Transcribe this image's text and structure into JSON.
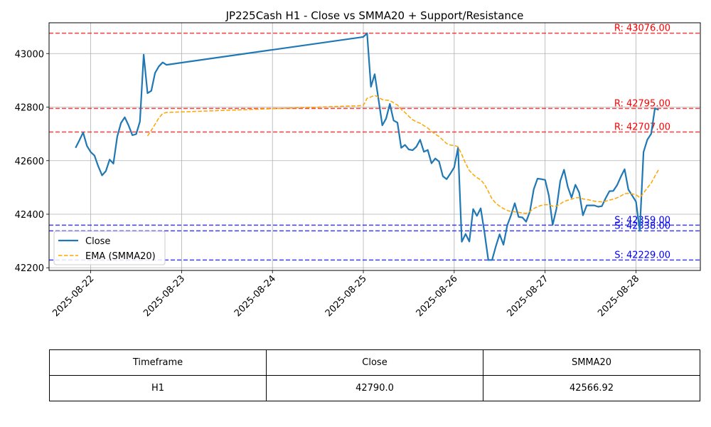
{
  "chart_data": {
    "type": "line",
    "title": "JP225Cash H1 - Close vs SMMA20 + Support/Resistance",
    "xlabel": "",
    "ylabel": "",
    "ylim": [
      42190,
      43115
    ],
    "yticks": [
      42200,
      42400,
      42600,
      42800,
      43000
    ],
    "xlim": [
      "2025-08-21 13:00",
      "2025-08-28 17:00"
    ],
    "xticks": [
      "2025-08-22",
      "2025-08-23",
      "2025-08-24",
      "2025-08-25",
      "2025-08-26",
      "2025-08-27",
      "2025-08-28"
    ],
    "grid": true,
    "legend": {
      "placement": "lower-left",
      "entries": [
        "Close",
        "EMA (SMMA20)"
      ]
    },
    "series": [
      {
        "name": "Close",
        "color": "#1f77b4",
        "style": "solid",
        "points": [
          [
            "2025-08-21 20:00",
            42648
          ],
          [
            "2025-08-21 21:00",
            42676
          ],
          [
            "2025-08-21 22:00",
            42705
          ],
          [
            "2025-08-21 23:00",
            42655
          ],
          [
            "2025-08-22 00:00",
            42632
          ],
          [
            "2025-08-22 01:00",
            42619
          ],
          [
            "2025-08-22 02:00",
            42579
          ],
          [
            "2025-08-22 03:00",
            42545
          ],
          [
            "2025-08-22 04:00",
            42561
          ],
          [
            "2025-08-22 05:00",
            42604
          ],
          [
            "2025-08-22 06:00",
            42589
          ],
          [
            "2025-08-22 07:00",
            42690
          ],
          [
            "2025-08-22 08:00",
            42741
          ],
          [
            "2025-08-22 09:00",
            42762
          ],
          [
            "2025-08-22 10:00",
            42732
          ],
          [
            "2025-08-22 11:00",
            42695
          ],
          [
            "2025-08-22 12:00",
            42699
          ],
          [
            "2025-08-22 13:00",
            42746
          ],
          [
            "2025-08-22 14:00",
            42996
          ],
          [
            "2025-08-22 15:00",
            42852
          ],
          [
            "2025-08-22 16:00",
            42861
          ],
          [
            "2025-08-22 17:00",
            42928
          ],
          [
            "2025-08-22 18:00",
            42952
          ],
          [
            "2025-08-22 19:00",
            42967
          ],
          [
            "2025-08-22 20:00",
            42958
          ],
          [
            "2025-08-25 00:00",
            43062
          ],
          [
            "2025-08-25 01:00",
            43076
          ],
          [
            "2025-08-25 02:00",
            42876
          ],
          [
            "2025-08-25 03:00",
            42923
          ],
          [
            "2025-08-25 04:00",
            42830
          ],
          [
            "2025-08-25 05:00",
            42732
          ],
          [
            "2025-08-25 06:00",
            42757
          ],
          [
            "2025-08-25 07:00",
            42812
          ],
          [
            "2025-08-25 08:00",
            42750
          ],
          [
            "2025-08-25 09:00",
            42742
          ],
          [
            "2025-08-25 10:00",
            42648
          ],
          [
            "2025-08-25 11:00",
            42659
          ],
          [
            "2025-08-25 12:00",
            42642
          ],
          [
            "2025-08-25 13:00",
            42639
          ],
          [
            "2025-08-25 14:00",
            42652
          ],
          [
            "2025-08-25 15:00",
            42678
          ],
          [
            "2025-08-25 16:00",
            42633
          ],
          [
            "2025-08-25 17:00",
            42640
          ],
          [
            "2025-08-25 18:00",
            42590
          ],
          [
            "2025-08-25 19:00",
            42608
          ],
          [
            "2025-08-25 20:00",
            42597
          ],
          [
            "2025-08-25 21:00",
            42542
          ],
          [
            "2025-08-25 22:00",
            42531
          ],
          [
            "2025-08-25 23:00",
            42552
          ],
          [
            "2025-08-26 00:00",
            42575
          ],
          [
            "2025-08-26 01:00",
            42648
          ],
          [
            "2025-08-26 02:00",
            42297
          ],
          [
            "2025-08-26 03:00",
            42326
          ],
          [
            "2025-08-26 04:00",
            42298
          ],
          [
            "2025-08-26 05:00",
            42419
          ],
          [
            "2025-08-26 06:00",
            42394
          ],
          [
            "2025-08-26 07:00",
            42422
          ],
          [
            "2025-08-26 08:00",
            42332
          ],
          [
            "2025-08-26 09:00",
            42229
          ],
          [
            "2025-08-26 10:00",
            42229
          ],
          [
            "2025-08-26 11:00",
            42280
          ],
          [
            "2025-08-26 12:00",
            42325
          ],
          [
            "2025-08-26 13:00",
            42286
          ],
          [
            "2025-08-26 14:00",
            42358
          ],
          [
            "2025-08-26 15:00",
            42396
          ],
          [
            "2025-08-26 16:00",
            42441
          ],
          [
            "2025-08-26 17:00",
            42390
          ],
          [
            "2025-08-26 18:00",
            42388
          ],
          [
            "2025-08-26 19:00",
            42372
          ],
          [
            "2025-08-26 20:00",
            42410
          ],
          [
            "2025-08-26 21:00",
            42493
          ],
          [
            "2025-08-26 22:00",
            42533
          ],
          [
            "2025-08-26 23:00",
            42531
          ],
          [
            "2025-08-27 00:00",
            42528
          ],
          [
            "2025-08-27 01:00",
            42469
          ],
          [
            "2025-08-27 02:00",
            42360
          ],
          [
            "2025-08-27 03:00",
            42420
          ],
          [
            "2025-08-27 04:00",
            42524
          ],
          [
            "2025-08-27 05:00",
            42566
          ],
          [
            "2025-08-27 06:00",
            42502
          ],
          [
            "2025-08-27 07:00",
            42462
          ],
          [
            "2025-08-27 08:00",
            42510
          ],
          [
            "2025-08-27 09:00",
            42481
          ],
          [
            "2025-08-27 10:00",
            42396
          ],
          [
            "2025-08-27 11:00",
            42433
          ],
          [
            "2025-08-27 12:00",
            42433
          ],
          [
            "2025-08-27 13:00",
            42433
          ],
          [
            "2025-08-27 14:00",
            42428
          ],
          [
            "2025-08-27 15:00",
            42430
          ],
          [
            "2025-08-27 16:00",
            42460
          ],
          [
            "2025-08-27 17:00",
            42486
          ],
          [
            "2025-08-27 18:00",
            42487
          ],
          [
            "2025-08-27 19:00",
            42508
          ],
          [
            "2025-08-27 20:00",
            42540
          ],
          [
            "2025-08-27 21:00",
            42568
          ],
          [
            "2025-08-27 22:00",
            42492
          ],
          [
            "2025-08-27 23:00",
            42470
          ],
          [
            "2025-08-28 00:00",
            42447
          ],
          [
            "2025-08-28 01:00",
            42338
          ],
          [
            "2025-08-28 02:00",
            42632
          ],
          [
            "2025-08-28 03:00",
            42678
          ],
          [
            "2025-08-28 04:00",
            42700
          ],
          [
            "2025-08-28 05:00",
            42795
          ],
          [
            "2025-08-28 06:00",
            42790
          ]
        ]
      },
      {
        "name": "EMA (SMMA20)",
        "color": "#ffa500",
        "style": "dashed",
        "points": [
          [
            "2025-08-22 15:00",
            42692
          ],
          [
            "2025-08-22 16:00",
            42713
          ],
          [
            "2025-08-22 17:00",
            42736
          ],
          [
            "2025-08-22 18:00",
            42759
          ],
          [
            "2025-08-22 19:00",
            42776
          ],
          [
            "2025-08-22 20:00",
            42780
          ],
          [
            "2025-08-25 00:00",
            42806
          ],
          [
            "2025-08-25 01:00",
            42833
          ],
          [
            "2025-08-25 02:00",
            42838
          ],
          [
            "2025-08-25 03:00",
            42844
          ],
          [
            "2025-08-25 04:00",
            42837
          ],
          [
            "2025-08-25 05:00",
            42828
          ],
          [
            "2025-08-25 06:00",
            42826
          ],
          [
            "2025-08-25 07:00",
            42825
          ],
          [
            "2025-08-25 08:00",
            42816
          ],
          [
            "2025-08-25 09:00",
            42808
          ],
          [
            "2025-08-25 10:00",
            42792
          ],
          [
            "2025-08-25 11:00",
            42780
          ],
          [
            "2025-08-25 12:00",
            42766
          ],
          [
            "2025-08-25 13:00",
            42753
          ],
          [
            "2025-08-25 14:00",
            42745
          ],
          [
            "2025-08-25 15:00",
            42740
          ],
          [
            "2025-08-25 16:00",
            42731
          ],
          [
            "2025-08-25 17:00",
            42722
          ],
          [
            "2025-08-25 18:00",
            42709
          ],
          [
            "2025-08-25 19:00",
            42699
          ],
          [
            "2025-08-25 20:00",
            42690
          ],
          [
            "2025-08-25 21:00",
            42677
          ],
          [
            "2025-08-25 22:00",
            42664
          ],
          [
            "2025-08-25 23:00",
            42658
          ],
          [
            "2025-08-26 00:00",
            42657
          ],
          [
            "2025-08-26 01:00",
            42652
          ],
          [
            "2025-08-26 02:00",
            42623
          ],
          [
            "2025-08-26 03:00",
            42590
          ],
          [
            "2025-08-26 04:00",
            42563
          ],
          [
            "2025-08-26 05:00",
            42548
          ],
          [
            "2025-08-26 06:00",
            42537
          ],
          [
            "2025-08-26 07:00",
            42528
          ],
          [
            "2025-08-26 08:00",
            42512
          ],
          [
            "2025-08-26 09:00",
            42485
          ],
          [
            "2025-08-26 10:00",
            42457
          ],
          [
            "2025-08-26 11:00",
            42441
          ],
          [
            "2025-08-26 12:00",
            42430
          ],
          [
            "2025-08-26 13:00",
            42421
          ],
          [
            "2025-08-26 14:00",
            42414
          ],
          [
            "2025-08-26 15:00",
            42410
          ],
          [
            "2025-08-26 16:00",
            42409
          ],
          [
            "2025-08-26 17:00",
            42407
          ],
          [
            "2025-08-26 18:00",
            42405
          ],
          [
            "2025-08-26 19:00",
            42403
          ],
          [
            "2025-08-26 20:00",
            42410
          ],
          [
            "2025-08-26 21:00",
            42421
          ],
          [
            "2025-08-26 22:00",
            42428
          ],
          [
            "2025-08-26 23:00",
            42433
          ],
          [
            "2025-08-27 00:00",
            42436
          ],
          [
            "2025-08-27 01:00",
            42435
          ],
          [
            "2025-08-27 02:00",
            42430
          ],
          [
            "2025-08-27 03:00",
            42430
          ],
          [
            "2025-08-27 04:00",
            42438
          ],
          [
            "2025-08-27 05:00",
            42448
          ],
          [
            "2025-08-27 06:00",
            42452
          ],
          [
            "2025-08-27 07:00",
            42456
          ],
          [
            "2025-08-27 08:00",
            42461
          ],
          [
            "2025-08-27 09:00",
            42462
          ],
          [
            "2025-08-27 10:00",
            42457
          ],
          [
            "2025-08-27 11:00",
            42455
          ],
          [
            "2025-08-27 12:00",
            42452
          ],
          [
            "2025-08-27 13:00",
            42449
          ],
          [
            "2025-08-27 14:00",
            42447
          ],
          [
            "2025-08-27 15:00",
            42446
          ],
          [
            "2025-08-27 16:00",
            42449
          ],
          [
            "2025-08-27 17:00",
            42453
          ],
          [
            "2025-08-27 18:00",
            42456
          ],
          [
            "2025-08-27 19:00",
            42461
          ],
          [
            "2025-08-27 20:00",
            42468
          ],
          [
            "2025-08-27 21:00",
            42477
          ],
          [
            "2025-08-27 22:00",
            42478
          ],
          [
            "2025-08-27 23:00",
            42476
          ],
          [
            "2025-08-28 00:00",
            42473
          ],
          [
            "2025-08-28 01:00",
            42462
          ],
          [
            "2025-08-28 02:00",
            42479
          ],
          [
            "2025-08-28 03:00",
            42498
          ],
          [
            "2025-08-28 04:00",
            42516
          ],
          [
            "2025-08-28 05:00",
            42542
          ],
          [
            "2025-08-28 06:00",
            42566.92
          ]
        ]
      }
    ],
    "levels": [
      {
        "kind": "resistance",
        "value": 43076.0,
        "label": "R: 43076.00",
        "color": "#ff0000"
      },
      {
        "kind": "resistance",
        "value": 42795.0,
        "label": "R: 42795.00",
        "color": "#ff0000"
      },
      {
        "kind": "resistance",
        "value": 42707.0,
        "label": "R: 42707.00",
        "color": "#ff0000"
      },
      {
        "kind": "support",
        "value": 42359.0,
        "label": "S: 42359.00",
        "color": "#0000ff"
      },
      {
        "kind": "support",
        "value": 42338.0,
        "label": "S: 42338.00",
        "color": "#0000ff"
      },
      {
        "kind": "support",
        "value": 42229.0,
        "label": "S: 42229.00",
        "color": "#0000ff"
      }
    ]
  },
  "table": {
    "headers": [
      "Timeframe",
      "Close",
      "SMMA20"
    ],
    "rows": [
      [
        "H1",
        "42790.0",
        "42566.92"
      ]
    ]
  }
}
